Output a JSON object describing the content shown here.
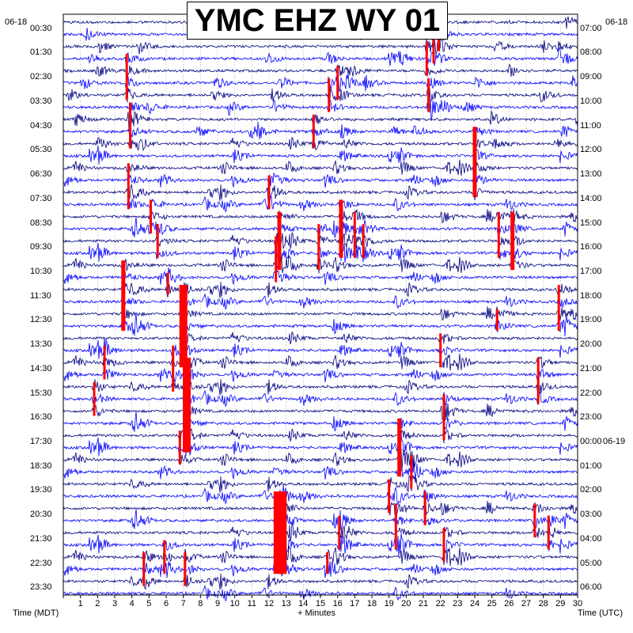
{
  "chart_data": {
    "type": "line",
    "title": "YMC EHZ WY 01",
    "xlabel": "+ Minutes",
    "ylabel_left": "Time (MDT)",
    "ylabel_right": "Time (UTC)",
    "date_left": "06-18",
    "date_right": "06-18",
    "next_date_right": "06-19",
    "x_ticks": [
      "1",
      "2",
      "3",
      "4",
      "5",
      "6",
      "7",
      "8",
      "9",
      "10",
      "11",
      "12",
      "13",
      "14",
      "15",
      "16",
      "17",
      "18",
      "19",
      "20",
      "21",
      "22",
      "23",
      "24",
      "25",
      "26",
      "27",
      "28",
      "29",
      "30"
    ],
    "xlim": [
      0,
      30
    ],
    "left_ticks": [
      "00:30",
      "01:30",
      "02:30",
      "03:30",
      "04:30",
      "05:30",
      "06:30",
      "07:30",
      "08:30",
      "09:30",
      "10:30",
      "11:30",
      "12:30",
      "13:30",
      "14:30",
      "15:30",
      "16:30",
      "17:30",
      "18:30",
      "19:30",
      "20:30",
      "21:30",
      "22:30",
      "23:30"
    ],
    "right_ticks": [
      "07:00",
      "08:00",
      "09:00",
      "10:00",
      "11:00",
      "12:00",
      "13:00",
      "14:00",
      "15:00",
      "16:00",
      "17:00",
      "18:00",
      "19:00",
      "20:00",
      "21:00",
      "22:00",
      "23:00",
      "00:00",
      "01:00",
      "02:00",
      "03:00",
      "04:00",
      "05:00",
      "06:00"
    ],
    "rows": 48,
    "minutes_per_row": 30,
    "trace_colors": [
      "#000080",
      "#0000ff"
    ],
    "event_color": "#ff0000",
    "grid": true,
    "events": [
      {
        "row": 3,
        "minute": 3.7,
        "span": 4
      },
      {
        "row": 7,
        "minute": 3.9,
        "span": 4
      },
      {
        "row": 12,
        "minute": 3.8,
        "span": 4
      },
      {
        "row": 20,
        "minute": 3.5,
        "span": 6
      },
      {
        "row": 15,
        "minute": 5.1,
        "span": 3
      },
      {
        "row": 17,
        "minute": 5.5,
        "span": 3
      },
      {
        "row": 21,
        "minute": 6.1,
        "span": 2
      },
      {
        "row": 22,
        "minute": 7.0,
        "span": 7
      },
      {
        "row": 28,
        "minute": 7.2,
        "span": 8
      },
      {
        "row": 34,
        "minute": 6.8,
        "span": 3
      },
      {
        "row": 13,
        "minute": 12.0,
        "span": 3
      },
      {
        "row": 16,
        "minute": 12.6,
        "span": 5
      },
      {
        "row": 18,
        "minute": 12.4,
        "span": 4
      },
      {
        "row": 8,
        "minute": 14.6,
        "span": 3
      },
      {
        "row": 17,
        "minute": 14.9,
        "span": 4
      },
      {
        "row": 15,
        "minute": 16.2,
        "span": 5
      },
      {
        "row": 4,
        "minute": 16.0,
        "span": 3
      },
      {
        "row": 16,
        "minute": 17.0,
        "span": 4
      },
      {
        "row": 17,
        "minute": 17.5,
        "span": 3
      },
      {
        "row": 5,
        "minute": 15.5,
        "span": 3
      },
      {
        "row": 1,
        "minute": 21.6,
        "span": 3
      },
      {
        "row": 1,
        "minute": 21.9,
        "span": 2
      },
      {
        "row": 2,
        "minute": 21.2,
        "span": 3
      },
      {
        "row": 5,
        "minute": 21.3,
        "span": 3
      },
      {
        "row": 9,
        "minute": 24.0,
        "span": 6
      },
      {
        "row": 16,
        "minute": 25.4,
        "span": 4
      },
      {
        "row": 16,
        "minute": 26.2,
        "span": 5
      },
      {
        "row": 24,
        "minute": 25.3,
        "span": 2
      },
      {
        "row": 26,
        "minute": 22.0,
        "span": 3
      },
      {
        "row": 31,
        "minute": 22.2,
        "span": 4
      },
      {
        "row": 33,
        "minute": 19.6,
        "span": 5
      },
      {
        "row": 36,
        "minute": 20.3,
        "span": 3
      },
      {
        "row": 38,
        "minute": 19.0,
        "span": 3
      },
      {
        "row": 40,
        "minute": 19.4,
        "span": 4
      },
      {
        "row": 39,
        "minute": 21.1,
        "span": 3
      },
      {
        "row": 42,
        "minute": 22.2,
        "span": 3
      },
      {
        "row": 39,
        "minute": 12.8,
        "span": 7
      },
      {
        "row": 39,
        "minute": 12.5,
        "span": 7
      },
      {
        "row": 41,
        "minute": 16.1,
        "span": 3
      },
      {
        "row": 43,
        "minute": 5.9,
        "span": 3
      },
      {
        "row": 44,
        "minute": 7.1,
        "span": 3
      },
      {
        "row": 44,
        "minute": 4.7,
        "span": 3
      },
      {
        "row": 40,
        "minute": 27.5,
        "span": 3
      },
      {
        "row": 41,
        "minute": 28.3,
        "span": 3
      },
      {
        "row": 22,
        "minute": 28.9,
        "span": 4
      },
      {
        "row": 28,
        "minute": 27.7,
        "span": 4
      },
      {
        "row": 27,
        "minute": 6.4,
        "span": 4
      },
      {
        "row": 30,
        "minute": 1.8,
        "span": 3
      },
      {
        "row": 27,
        "minute": 2.4,
        "span": 3
      },
      {
        "row": 44,
        "minute": 15.4,
        "span": 2
      }
    ]
  }
}
